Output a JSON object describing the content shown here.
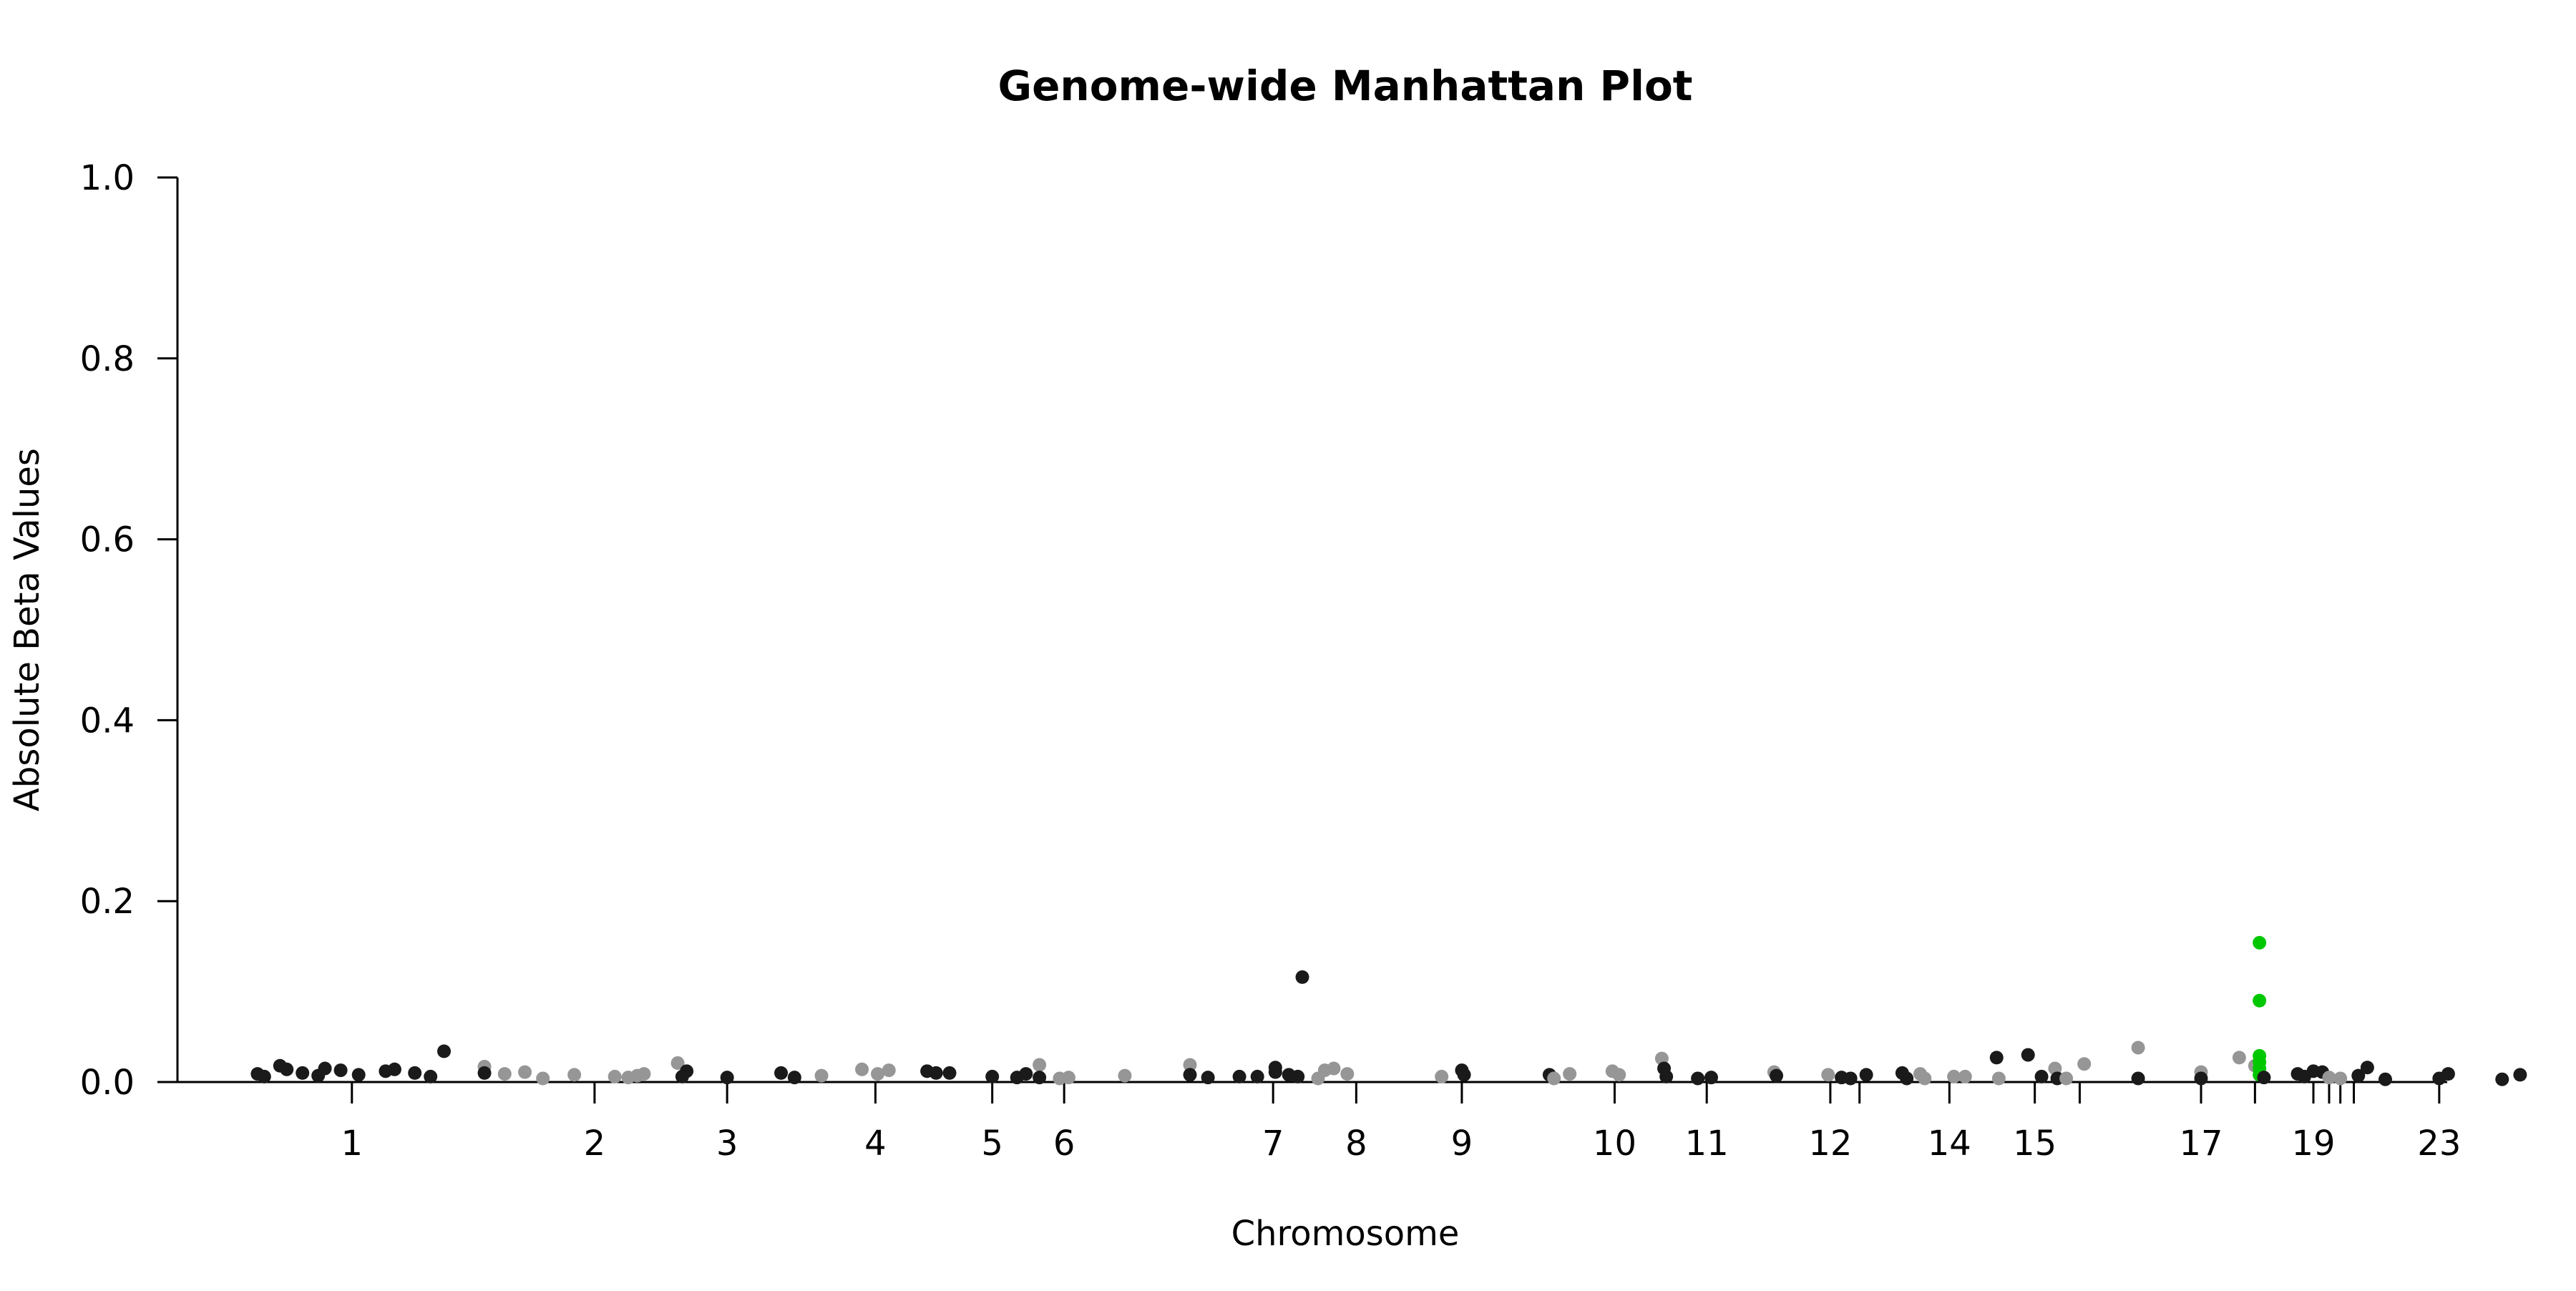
{
  "chart_data": {
    "type": "scatter",
    "title": "Genome-wide Manhattan Plot",
    "xlabel": "Chromosome",
    "ylabel": "Absolute Beta Values",
    "ylim": [
      0,
      1.0
    ],
    "yticks": [
      0.0,
      0.2,
      0.4,
      0.6,
      0.8,
      1.0
    ],
    "ytick_labels": [
      "0.0",
      "0.2",
      "0.4",
      "0.6",
      "0.8",
      "1.0"
    ],
    "grid": false,
    "legend": "none",
    "colors": {
      "odd": "#1a1a1a",
      "even": "#969696",
      "highlight": "#00c800"
    },
    "chromosomes": [
      {
        "chr": "1",
        "center": 0.077,
        "label": "1"
      },
      {
        "chr": "2",
        "center": 0.185,
        "label": "2"
      },
      {
        "chr": "3",
        "center": 0.244,
        "label": "3"
      },
      {
        "chr": "4",
        "center": 0.31,
        "label": "4"
      },
      {
        "chr": "5",
        "center": 0.362,
        "label": "5"
      },
      {
        "chr": "6",
        "center": 0.394,
        "label": "6"
      },
      {
        "chr": "7",
        "center": 0.487,
        "label": "7"
      },
      {
        "chr": "8",
        "center": 0.524,
        "label": "8"
      },
      {
        "chr": "9",
        "center": 0.571,
        "label": "9"
      },
      {
        "chr": "10",
        "center": 0.639,
        "label": "10"
      },
      {
        "chr": "11",
        "center": 0.68,
        "label": "11"
      },
      {
        "chr": "12",
        "center": 0.735,
        "label": "12"
      },
      {
        "chr": "13",
        "center": 0.748,
        "label": ""
      },
      {
        "chr": "14",
        "center": 0.788,
        "label": "14"
      },
      {
        "chr": "15",
        "center": 0.826,
        "label": "15"
      },
      {
        "chr": "16",
        "center": 0.846,
        "label": ""
      },
      {
        "chr": "17",
        "center": 0.9,
        "label": "17"
      },
      {
        "chr": "18",
        "center": 0.924,
        "label": ""
      },
      {
        "chr": "19",
        "center": 0.95,
        "label": "19"
      },
      {
        "chr": "20",
        "center": 0.957,
        "label": ""
      },
      {
        "chr": "21",
        "center": 0.962,
        "label": ""
      },
      {
        "chr": "22",
        "center": 0.968,
        "label": ""
      },
      {
        "chr": "23",
        "center": 1.006,
        "label": "23"
      }
    ],
    "points": [
      {
        "x": 0.035,
        "y": 0.009,
        "c": "odd"
      },
      {
        "x": 0.038,
        "y": 0.006,
        "c": "odd"
      },
      {
        "x": 0.045,
        "y": 0.018,
        "c": "odd"
      },
      {
        "x": 0.048,
        "y": 0.014,
        "c": "odd"
      },
      {
        "x": 0.055,
        "y": 0.01,
        "c": "odd"
      },
      {
        "x": 0.062,
        "y": 0.007,
        "c": "odd"
      },
      {
        "x": 0.065,
        "y": 0.015,
        "c": "odd"
      },
      {
        "x": 0.072,
        "y": 0.013,
        "c": "odd"
      },
      {
        "x": 0.08,
        "y": 0.008,
        "c": "odd"
      },
      {
        "x": 0.092,
        "y": 0.012,
        "c": "odd"
      },
      {
        "x": 0.096,
        "y": 0.014,
        "c": "odd"
      },
      {
        "x": 0.105,
        "y": 0.01,
        "c": "odd"
      },
      {
        "x": 0.112,
        "y": 0.006,
        "c": "odd"
      },
      {
        "x": 0.118,
        "y": 0.034,
        "c": "odd"
      },
      {
        "x": 0.136,
        "y": 0.017,
        "c": "even"
      },
      {
        "x": 0.136,
        "y": 0.01,
        "c": "odd"
      },
      {
        "x": 0.145,
        "y": 0.009,
        "c": "even"
      },
      {
        "x": 0.154,
        "y": 0.011,
        "c": "even"
      },
      {
        "x": 0.162,
        "y": 0.004,
        "c": "even"
      },
      {
        "x": 0.176,
        "y": 0.008,
        "c": "even"
      },
      {
        "x": 0.194,
        "y": 0.006,
        "c": "even"
      },
      {
        "x": 0.2,
        "y": 0.005,
        "c": "even"
      },
      {
        "x": 0.204,
        "y": 0.007,
        "c": "even"
      },
      {
        "x": 0.207,
        "y": 0.009,
        "c": "even"
      },
      {
        "x": 0.222,
        "y": 0.021,
        "c": "even"
      },
      {
        "x": 0.224,
        "y": 0.006,
        "c": "odd"
      },
      {
        "x": 0.226,
        "y": 0.012,
        "c": "odd"
      },
      {
        "x": 0.244,
        "y": 0.005,
        "c": "odd"
      },
      {
        "x": 0.268,
        "y": 0.01,
        "c": "odd"
      },
      {
        "x": 0.274,
        "y": 0.005,
        "c": "odd"
      },
      {
        "x": 0.286,
        "y": 0.007,
        "c": "even"
      },
      {
        "x": 0.304,
        "y": 0.014,
        "c": "even"
      },
      {
        "x": 0.311,
        "y": 0.009,
        "c": "even"
      },
      {
        "x": 0.316,
        "y": 0.013,
        "c": "even"
      },
      {
        "x": 0.333,
        "y": 0.012,
        "c": "odd"
      },
      {
        "x": 0.337,
        "y": 0.01,
        "c": "odd"
      },
      {
        "x": 0.343,
        "y": 0.01,
        "c": "odd"
      },
      {
        "x": 0.362,
        "y": 0.006,
        "c": "odd"
      },
      {
        "x": 0.373,
        "y": 0.005,
        "c": "odd"
      },
      {
        "x": 0.377,
        "y": 0.009,
        "c": "odd"
      },
      {
        "x": 0.383,
        "y": 0.019,
        "c": "even"
      },
      {
        "x": 0.383,
        "y": 0.005,
        "c": "odd"
      },
      {
        "x": 0.392,
        "y": 0.004,
        "c": "even"
      },
      {
        "x": 0.396,
        "y": 0.005,
        "c": "even"
      },
      {
        "x": 0.421,
        "y": 0.007,
        "c": "even"
      },
      {
        "x": 0.45,
        "y": 0.019,
        "c": "even"
      },
      {
        "x": 0.45,
        "y": 0.008,
        "c": "odd"
      },
      {
        "x": 0.458,
        "y": 0.005,
        "c": "odd"
      },
      {
        "x": 0.472,
        "y": 0.006,
        "c": "odd"
      },
      {
        "x": 0.48,
        "y": 0.006,
        "c": "odd"
      },
      {
        "x": 0.488,
        "y": 0.016,
        "c": "odd"
      },
      {
        "x": 0.488,
        "y": 0.011,
        "c": "odd"
      },
      {
        "x": 0.494,
        "y": 0.008,
        "c": "odd"
      },
      {
        "x": 0.498,
        "y": 0.006,
        "c": "odd"
      },
      {
        "x": 0.5,
        "y": 0.116,
        "c": "odd"
      },
      {
        "x": 0.51,
        "y": 0.013,
        "c": "even"
      },
      {
        "x": 0.514,
        "y": 0.015,
        "c": "even"
      },
      {
        "x": 0.52,
        "y": 0.009,
        "c": "even"
      },
      {
        "x": 0.507,
        "y": 0.004,
        "c": "even"
      },
      {
        "x": 0.562,
        "y": 0.006,
        "c": "even"
      },
      {
        "x": 0.571,
        "y": 0.013,
        "c": "odd"
      },
      {
        "x": 0.572,
        "y": 0.008,
        "c": "odd"
      },
      {
        "x": 0.61,
        "y": 0.008,
        "c": "odd"
      },
      {
        "x": 0.612,
        "y": 0.004,
        "c": "even"
      },
      {
        "x": 0.619,
        "y": 0.009,
        "c": "even"
      },
      {
        "x": 0.638,
        "y": 0.012,
        "c": "even"
      },
      {
        "x": 0.641,
        "y": 0.008,
        "c": "even"
      },
      {
        "x": 0.66,
        "y": 0.026,
        "c": "even"
      },
      {
        "x": 0.661,
        "y": 0.015,
        "c": "odd"
      },
      {
        "x": 0.662,
        "y": 0.006,
        "c": "odd"
      },
      {
        "x": 0.676,
        "y": 0.004,
        "c": "odd"
      },
      {
        "x": 0.682,
        "y": 0.005,
        "c": "odd"
      },
      {
        "x": 0.71,
        "y": 0.011,
        "c": "even"
      },
      {
        "x": 0.711,
        "y": 0.007,
        "c": "odd"
      },
      {
        "x": 0.734,
        "y": 0.008,
        "c": "even"
      },
      {
        "x": 0.74,
        "y": 0.005,
        "c": "odd"
      },
      {
        "x": 0.744,
        "y": 0.004,
        "c": "odd"
      },
      {
        "x": 0.751,
        "y": 0.008,
        "c": "odd"
      },
      {
        "x": 0.767,
        "y": 0.01,
        "c": "odd"
      },
      {
        "x": 0.769,
        "y": 0.004,
        "c": "odd"
      },
      {
        "x": 0.775,
        "y": 0.009,
        "c": "even"
      },
      {
        "x": 0.777,
        "y": 0.004,
        "c": "even"
      },
      {
        "x": 0.79,
        "y": 0.006,
        "c": "even"
      },
      {
        "x": 0.795,
        "y": 0.006,
        "c": "even"
      },
      {
        "x": 0.809,
        "y": 0.027,
        "c": "odd"
      },
      {
        "x": 0.81,
        "y": 0.004,
        "c": "even"
      },
      {
        "x": 0.823,
        "y": 0.03,
        "c": "odd"
      },
      {
        "x": 0.829,
        "y": 0.006,
        "c": "odd"
      },
      {
        "x": 0.835,
        "y": 0.015,
        "c": "even"
      },
      {
        "x": 0.836,
        "y": 0.004,
        "c": "odd"
      },
      {
        "x": 0.84,
        "y": 0.004,
        "c": "even"
      },
      {
        "x": 0.848,
        "y": 0.02,
        "c": "even"
      },
      {
        "x": 0.872,
        "y": 0.038,
        "c": "even"
      },
      {
        "x": 0.872,
        "y": 0.004,
        "c": "odd"
      },
      {
        "x": 0.9,
        "y": 0.011,
        "c": "even"
      },
      {
        "x": 0.9,
        "y": 0.004,
        "c": "odd"
      },
      {
        "x": 0.917,
        "y": 0.027,
        "c": "even"
      },
      {
        "x": 0.924,
        "y": 0.018,
        "c": "even"
      },
      {
        "x": 0.926,
        "y": 0.154,
        "c": "highlight"
      },
      {
        "x": 0.926,
        "y": 0.09,
        "c": "highlight"
      },
      {
        "x": 0.926,
        "y": 0.029,
        "c": "highlight"
      },
      {
        "x": 0.926,
        "y": 0.022,
        "c": "highlight"
      },
      {
        "x": 0.926,
        "y": 0.015,
        "c": "highlight"
      },
      {
        "x": 0.926,
        "y": 0.008,
        "c": "highlight"
      },
      {
        "x": 0.928,
        "y": 0.005,
        "c": "odd"
      },
      {
        "x": 0.943,
        "y": 0.009,
        "c": "odd"
      },
      {
        "x": 0.946,
        "y": 0.006,
        "c": "odd"
      },
      {
        "x": 0.95,
        "y": 0.012,
        "c": "odd"
      },
      {
        "x": 0.954,
        "y": 0.011,
        "c": "odd"
      },
      {
        "x": 0.957,
        "y": 0.005,
        "c": "even"
      },
      {
        "x": 0.962,
        "y": 0.004,
        "c": "even"
      },
      {
        "x": 0.97,
        "y": 0.007,
        "c": "odd"
      },
      {
        "x": 0.974,
        "y": 0.016,
        "c": "odd"
      },
      {
        "x": 0.982,
        "y": 0.003,
        "c": "odd"
      },
      {
        "x": 1.006,
        "y": 0.004,
        "c": "odd"
      },
      {
        "x": 1.01,
        "y": 0.009,
        "c": "odd"
      },
      {
        "x": 1.034,
        "y": 0.003,
        "c": "odd"
      },
      {
        "x": 1.042,
        "y": 0.008,
        "c": "odd"
      }
    ]
  }
}
